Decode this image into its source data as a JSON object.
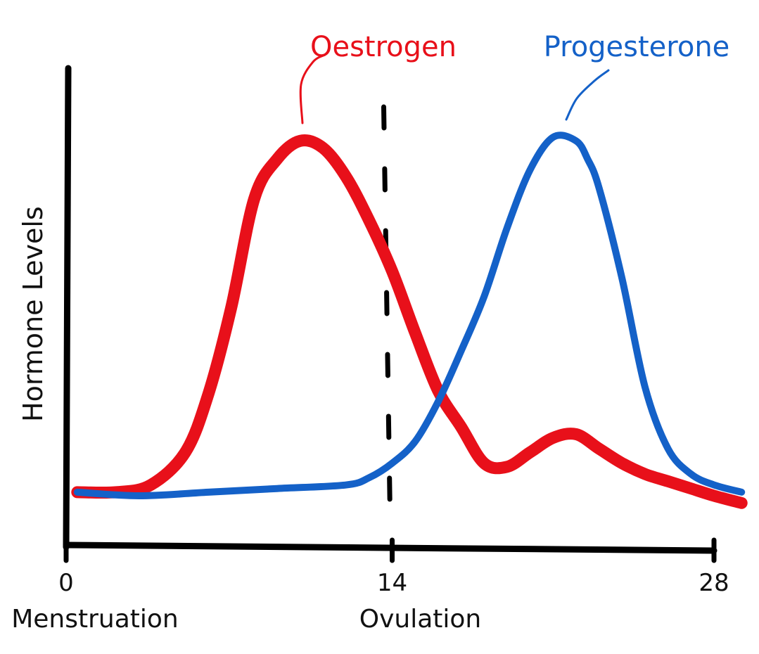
{
  "chart_data": {
    "type": "line",
    "title": "",
    "xlabel": "",
    "ylabel": "Hormone Levels",
    "xlim": [
      0,
      28
    ],
    "ylim": [
      0,
      1
    ],
    "x_ticks": [
      {
        "value": 0,
        "label": "0",
        "caption": "Menstruation"
      },
      {
        "value": 14,
        "label": "14",
        "caption": "Ovulation"
      },
      {
        "value": 28,
        "label": "28",
        "caption": ""
      }
    ],
    "vertical_marker": {
      "x": 14,
      "style": "dashed"
    },
    "grid": false,
    "series": [
      {
        "name": "Oestrogen",
        "color": "#e8101a",
        "x": [
          0.3,
          2,
          3.5,
          5,
          6,
          7,
          8,
          9,
          10,
          11,
          12,
          13,
          14,
          15,
          16,
          17,
          18,
          19,
          20,
          21,
          22,
          23,
          24,
          25,
          26,
          27,
          28,
          29.2
        ],
        "y": [
          0.01,
          0.01,
          0.03,
          0.12,
          0.28,
          0.52,
          0.82,
          0.93,
          0.98,
          0.96,
          0.88,
          0.76,
          0.62,
          0.45,
          0.29,
          0.19,
          0.09,
          0.08,
          0.12,
          0.16,
          0.17,
          0.13,
          0.09,
          0.06,
          0.04,
          0.02,
          0.0,
          -0.02
        ]
      },
      {
        "name": "Progesterone",
        "color": "#1461c8",
        "x": [
          0.3,
          3,
          6,
          9,
          12,
          13,
          14,
          15,
          16,
          17,
          18,
          19,
          20,
          21,
          22,
          22.5,
          23,
          24,
          25,
          26,
          27,
          28,
          29.2
        ],
        "y": [
          0.01,
          0.0,
          0.01,
          0.02,
          0.03,
          0.05,
          0.09,
          0.15,
          0.26,
          0.4,
          0.55,
          0.74,
          0.9,
          0.99,
          0.98,
          0.93,
          0.85,
          0.6,
          0.3,
          0.13,
          0.06,
          0.03,
          0.01
        ]
      }
    ]
  }
}
